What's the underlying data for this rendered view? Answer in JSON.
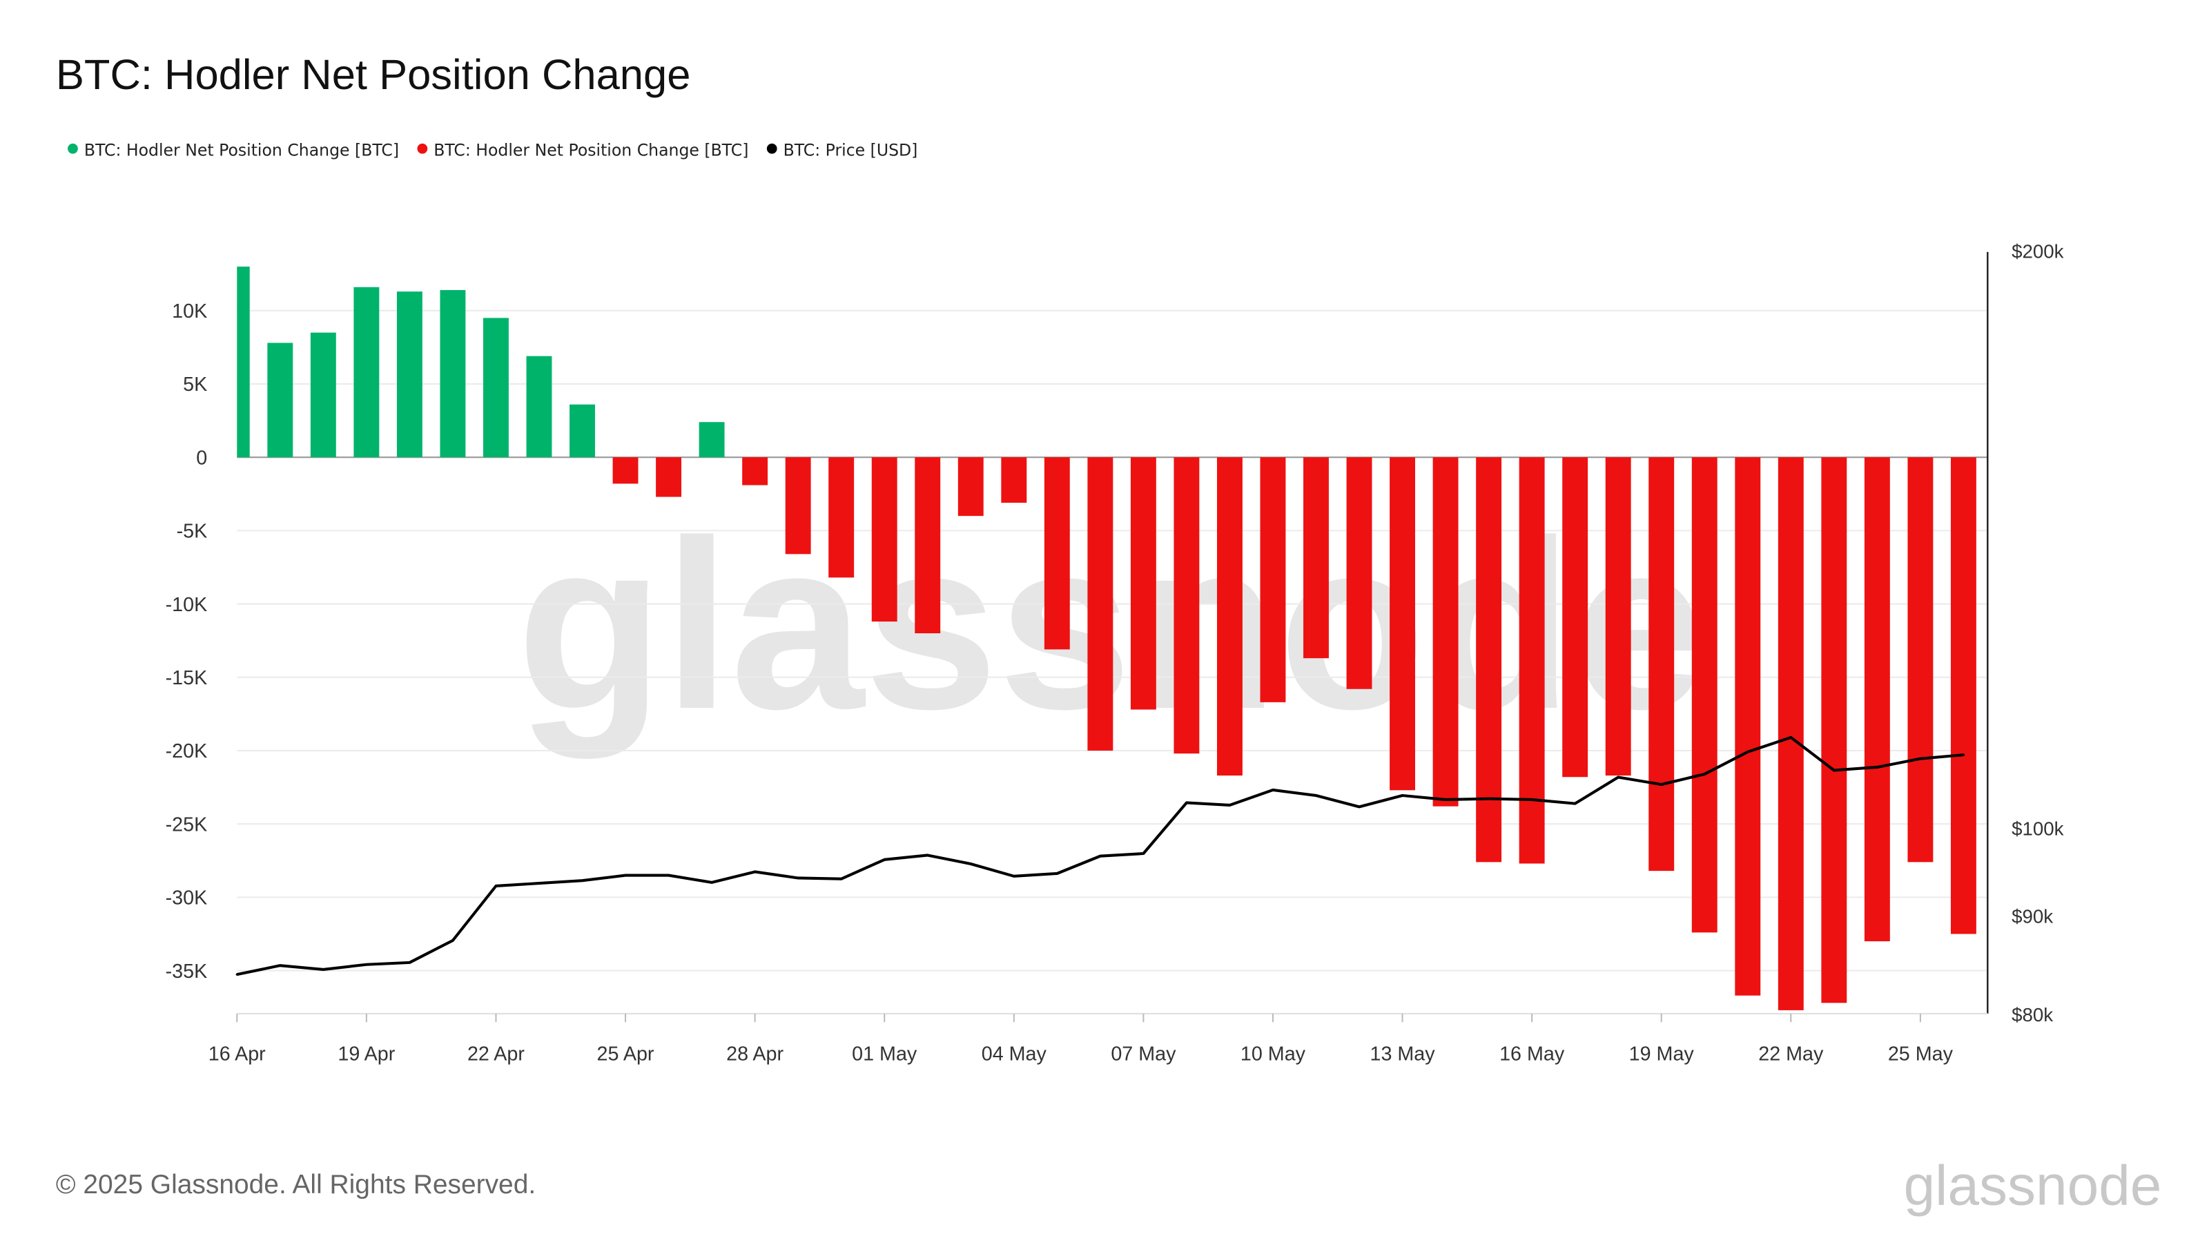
{
  "title": "BTC: Hodler Net Position Change",
  "footer": "© 2025 Glassnode. All Rights Reserved.",
  "logo": "glassnode",
  "watermark": "glassnode",
  "colors": {
    "positive": "#00b36b",
    "negative": "#ee1111",
    "price": "#000000",
    "grid": "#ebebeb"
  },
  "chart_data": {
    "type": "bar+line",
    "title": "BTC: Hodler Net Position Change",
    "legend": [
      {
        "label": "BTC: Hodler Net Position Change [BTC]",
        "color": "#00b36b"
      },
      {
        "label": "BTC: Hodler Net Position Change [BTC]",
        "color": "#ee1111"
      },
      {
        "label": "BTC: Price [USD]",
        "color": "#000000"
      }
    ],
    "legend_position": "top-left",
    "x": [
      "16 Apr",
      "17 Apr",
      "18 Apr",
      "19 Apr",
      "20 Apr",
      "21 Apr",
      "22 Apr",
      "23 Apr",
      "24 Apr",
      "25 Apr",
      "26 Apr",
      "27 Apr",
      "28 Apr",
      "29 Apr",
      "30 Apr",
      "01 May",
      "02 May",
      "03 May",
      "04 May",
      "05 May",
      "06 May",
      "07 May",
      "08 May",
      "09 May",
      "10 May",
      "11 May",
      "12 May",
      "13 May",
      "14 May",
      "15 May",
      "16 May",
      "17 May",
      "18 May",
      "19 May",
      "20 May",
      "21 May",
      "22 May",
      "23 May",
      "24 May",
      "25 May",
      "26 May"
    ],
    "x_ticks": [
      "16 Apr",
      "19 Apr",
      "22 Apr",
      "25 Apr",
      "28 Apr",
      "01 May",
      "04 May",
      "07 May",
      "10 May",
      "13 May",
      "16 May",
      "19 May",
      "22 May",
      "25 May"
    ],
    "series": [
      {
        "name": "BTC: Hodler Net Position Change [BTC]",
        "axis": "left",
        "type": "bar",
        "values": [
          13000,
          7800,
          8500,
          11600,
          11300,
          11400,
          9500,
          6900,
          3600,
          -1800,
          -2700,
          2400,
          -1900,
          -6600,
          -8200,
          -11200,
          -12000,
          -4000,
          -3100,
          -13100,
          -20000,
          -17200,
          -20200,
          -21700,
          -16700,
          -13700,
          -15800,
          -22700,
          -23800,
          -27600,
          -27700,
          -21800,
          -21700,
          -28200,
          -32400,
          -36700,
          -37700,
          -37200,
          -33000,
          -27600,
          -32500
        ]
      },
      {
        "name": "BTC: Price [USD]",
        "axis": "right",
        "type": "line",
        "values": [
          83900,
          84800,
          84400,
          84900,
          85100,
          87400,
          93300,
          93600,
          93900,
          94500,
          94500,
          93700,
          94900,
          94200,
          94100,
          96300,
          96800,
          95800,
          94400,
          94700,
          96700,
          97000,
          103100,
          102800,
          104700,
          104000,
          102600,
          104000,
          103500,
          103600,
          103500,
          103000,
          106300,
          105400,
          106700,
          109600,
          111500,
          107200,
          107600,
          108700,
          109200
        ]
      }
    ],
    "y_left": {
      "ticks": [
        10000,
        5000,
        0,
        -5000,
        -10000,
        -15000,
        -20000,
        -25000,
        -30000,
        -35000
      ],
      "tick_labels": [
        "10K",
        "5K",
        "0",
        "-5K",
        "-10K",
        "-15K",
        "-20K",
        "-25K",
        "-30K",
        "-35K"
      ],
      "range": [
        -38000,
        14000
      ]
    },
    "y_right": {
      "scale": "log",
      "ticks": [
        200000,
        100000,
        90000,
        80000
      ],
      "tick_labels": [
        "$200k",
        "$100k",
        "$90k",
        "$80k"
      ],
      "range": [
        80000,
        200000
      ]
    },
    "grid": true
  }
}
